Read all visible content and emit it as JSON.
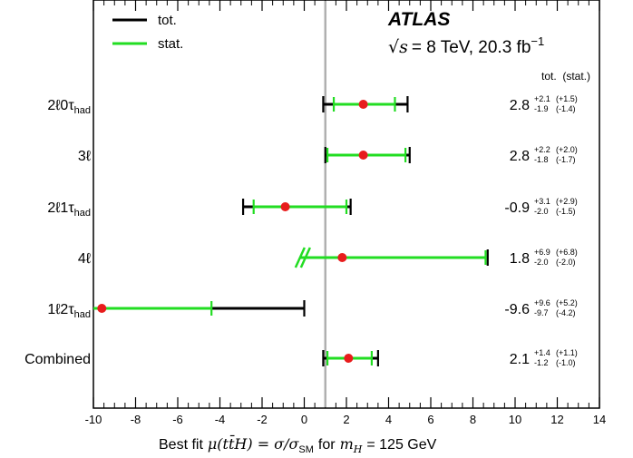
{
  "chart_data": {
    "type": "forest",
    "xlim": [
      -10,
      14
    ],
    "xticks": [
      -10,
      -8,
      -6,
      -4,
      -2,
      0,
      2,
      4,
      6,
      8,
      10,
      12,
      14
    ],
    "xlabel_parts": {
      "prefix": "Best fit",
      "mu": "μ(",
      "ttbar": "tt̄",
      "H": "H) = σ/σ",
      "sm": "SM",
      "for": "for",
      "mh": "m",
      "mh_sub": "H",
      "suffix": "= 125 GeV"
    },
    "reference_line": 1,
    "experiment": "ATLAS",
    "energy_text": "= 8 TeV, 20.3 fb",
    "sqrt_s": "√s",
    "lumi_exp": "−1",
    "column_header": "tot.  (stat.)",
    "legend": [
      {
        "label": "tot.",
        "color": "#000000"
      },
      {
        "label": "stat.",
        "color": "#22dd22"
      }
    ],
    "colors": {
      "tot": "#000000",
      "stat": "#22dd22",
      "point": "#e81c1c",
      "ref": "#b0b0b0"
    },
    "categories": [
      {
        "main": "2ℓ0τ",
        "sub": "had",
        "value": 2.8,
        "value_text": "2.8",
        "tot_up": 2.1,
        "tot_dn": 1.9,
        "stat_up": 1.5,
        "stat_dn": 1.4,
        "tot_up_text": "+2.1",
        "tot_dn_text": "-1.9",
        "stat_up_text": "(+1.5)",
        "stat_dn_text": "(-1.4)"
      },
      {
        "main": "3ℓ",
        "sub": "",
        "value": 2.8,
        "value_text": "2.8",
        "tot_up": 2.2,
        "tot_dn": 1.8,
        "stat_up": 2.0,
        "stat_dn": 1.7,
        "tot_up_text": "+2.2",
        "tot_dn_text": "-1.8",
        "stat_up_text": "(+2.0)",
        "stat_dn_text": "(-1.7)"
      },
      {
        "main": "2ℓ1τ",
        "sub": "had",
        "value": -0.9,
        "value_text": "-0.9",
        "tot_up": 3.1,
        "tot_dn": 2.0,
        "stat_up": 2.9,
        "stat_dn": 1.5,
        "tot_up_text": "+3.1",
        "tot_dn_text": "-2.0",
        "stat_up_text": "(+2.9)",
        "stat_dn_text": "(-1.5)"
      },
      {
        "main": "4ℓ",
        "sub": "",
        "value": 1.8,
        "value_text": "1.8",
        "tot_up": 6.9,
        "tot_dn": 2.0,
        "stat_up": 6.8,
        "stat_dn": 2.0,
        "tot_up_text": "+6.9",
        "tot_dn_text": "-2.0",
        "stat_up_text": "(+6.8)",
        "stat_dn_text": "(-2.0)",
        "lower_bound_physical": true
      },
      {
        "main": "1ℓ2τ",
        "sub": "had",
        "value": -9.6,
        "value_text": "-9.6",
        "tot_up": 9.6,
        "tot_dn": 9.7,
        "stat_up": 5.2,
        "stat_dn": 4.2,
        "tot_up_text": "+9.6",
        "tot_dn_text": "-9.7",
        "stat_up_text": "(+5.2)",
        "stat_dn_text": "(-4.2)"
      },
      {
        "main": "Combined",
        "sub": "",
        "value": 2.1,
        "value_text": "2.1",
        "tot_up": 1.4,
        "tot_dn": 1.2,
        "stat_up": 1.1,
        "stat_dn": 1.0,
        "tot_up_text": "+1.4",
        "tot_dn_text": "-1.2",
        "stat_up_text": "(+1.1)",
        "stat_dn_text": "(-1.0)"
      }
    ]
  }
}
